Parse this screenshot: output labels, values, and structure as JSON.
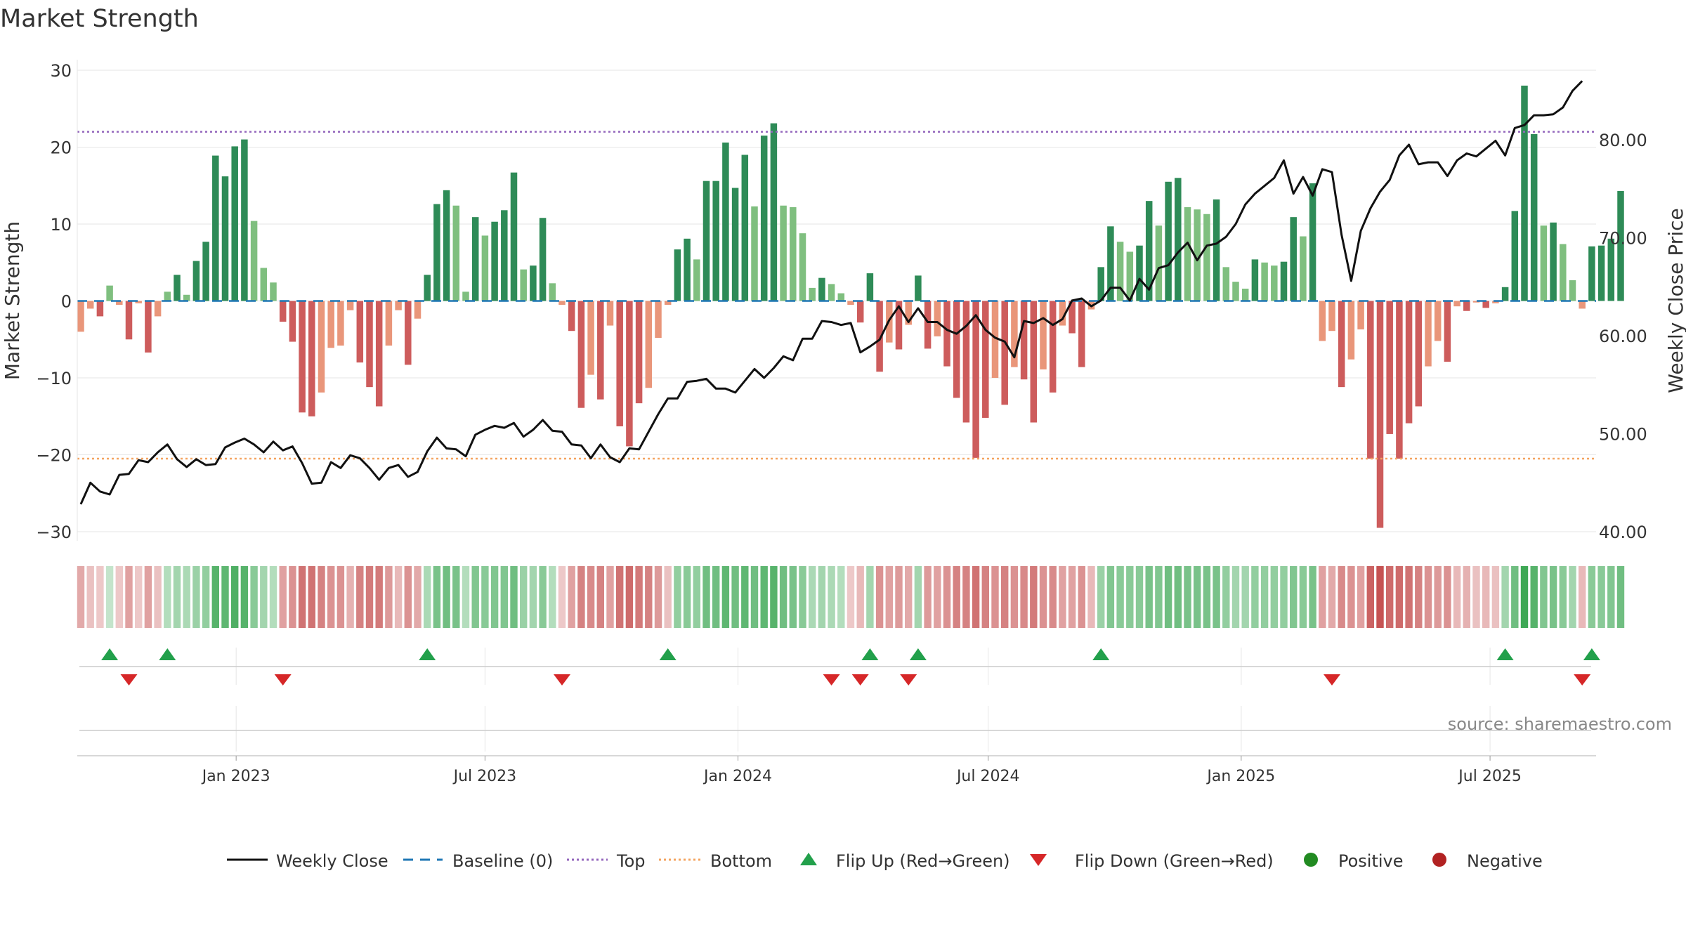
{
  "title": "Market Strength",
  "source_text": "source: sharemaestro.com",
  "chart_data": {
    "type": "bar",
    "title": "Market Strength",
    "ylabel": "Market Strength",
    "y2label": "Weekly Close Price",
    "ylim": [
      -30,
      30
    ],
    "y2lim": [
      40,
      85
    ],
    "yticks": [
      30,
      20,
      10,
      0,
      -10,
      -20,
      -30
    ],
    "yticklabels": [
      "30",
      "20",
      "10",
      "0",
      "−10",
      "−20",
      "−30"
    ],
    "y2ticks": [
      80,
      70,
      60,
      50,
      40
    ],
    "y2ticklabels": [
      "80.00",
      "70.00",
      "60.00",
      "50.00",
      "40.00"
    ],
    "x_start": "2022-09-10",
    "x_step_days": 7,
    "xticks": [
      {
        "date": "2023-01-01",
        "label": "Jan 2023"
      },
      {
        "date": "2023-07-01",
        "label": "Jul 2023"
      },
      {
        "date": "2024-01-01",
        "label": "Jan 2024"
      },
      {
        "date": "2024-07-01",
        "label": "Jul 2024"
      },
      {
        "date": "2025-01-01",
        "label": "Jan 2025"
      },
      {
        "date": "2025-07-01",
        "label": "Jul 2025"
      }
    ],
    "top_line": 22,
    "bottom_line": -20.5,
    "baseline": 0,
    "strength": [
      -4,
      -1,
      -2,
      2,
      -0.5,
      -5,
      -0.3,
      -6.7,
      -2,
      1.2,
      3.4,
      0.8,
      5.2,
      7.7,
      18.9,
      16.2,
      20.1,
      21,
      10.4,
      4.3,
      2.4,
      -2.7,
      -5.3,
      -14.5,
      -15,
      -11.9,
      -6.1,
      -5.8,
      -1.2,
      -8,
      -11.2,
      -13.7,
      -5.8,
      -1.2,
      -8.3,
      -2.3,
      3.4,
      12.6,
      14.4,
      12.4,
      1.2,
      10.9,
      8.5,
      10.3,
      11.8,
      16.7,
      4.1,
      4.6,
      10.8,
      2.3,
      -0.5,
      -3.9,
      -13.9,
      -9.6,
      -12.8,
      -3.2,
      -16.3,
      -18.9,
      -13.3,
      -11.3,
      -4.8,
      -0.5,
      6.7,
      8.1,
      5.4,
      15.6,
      15.6,
      20.6,
      14.7,
      19,
      12.3,
      21.5,
      23.1,
      12.4,
      12.2,
      8.8,
      1.7,
      3,
      2.2,
      1,
      -0.5,
      -2.8,
      3.6,
      -9.2,
      -5.4,
      -6.3,
      -3.1,
      3.3,
      -6.2,
      -4.6,
      -8.5,
      -12.6,
      -15.8,
      -20.4,
      -15.2,
      -10,
      -13.5,
      -8.6,
      -10.2,
      -15.8,
      -8.9,
      -11.9,
      -3.2,
      -4.2,
      -8.6,
      -1.1,
      4.4,
      9.7,
      7.7,
      6.4,
      7.2,
      13,
      9.8,
      15.5,
      16,
      12.2,
      11.9,
      11.3,
      13.2,
      4.4,
      2.5,
      1.6,
      5.4,
      5,
      4.6,
      5.1,
      10.9,
      8.4,
      15.3,
      -5.2,
      -3.9,
      -11.2,
      -7.6,
      -3.7,
      -20.5,
      -29.5,
      -17.3,
      -20.5,
      -15.9,
      -13.7,
      -8.5,
      -5.2,
      -7.9,
      -0.7,
      -1.3,
      -0.2,
      -0.9,
      -0.3,
      1.8,
      11.7,
      28,
      21.7,
      9.8,
      10.2,
      7.4,
      2.7,
      -1,
      7.1,
      7.2,
      8.1,
      14.3
    ],
    "weekly_close": [
      42.8,
      45,
      44.1,
      43.8,
      45.8,
      45.9,
      47.3,
      47.1,
      48.1,
      48.9,
      47.4,
      46.6,
      47.4,
      46.8,
      46.9,
      48.6,
      49.1,
      49.5,
      48.9,
      48.1,
      49.2,
      48.3,
      48.7,
      47,
      44.9,
      45,
      47.1,
      46.5,
      47.8,
      47.5,
      46.5,
      45.3,
      46.5,
      46.8,
      45.6,
      46.1,
      48.2,
      49.6,
      48.5,
      48.4,
      47.7,
      49.9,
      50.4,
      50.8,
      50.6,
      51.1,
      49.7,
      50.4,
      51.4,
      50.3,
      50.2,
      48.9,
      48.8,
      47.5,
      48.9,
      47.6,
      47.1,
      48.5,
      48.4,
      50.2,
      52,
      53.6,
      53.6,
      55.3,
      55.4,
      55.6,
      54.6,
      54.6,
      54.2,
      55.4,
      56.6,
      55.7,
      56.7,
      57.9,
      57.5,
      59.7,
      59.7,
      61.5,
      61.4,
      61.1,
      61.3,
      58.3,
      58.9,
      59.6,
      61.6,
      63,
      61.4,
      62.8,
      61.4,
      61.4,
      60.6,
      60.2,
      61,
      62.1,
      60.6,
      59.8,
      59.4,
      57.8,
      61.5,
      61.3,
      61.8,
      61.1,
      61.7,
      63.6,
      63.8,
      63,
      63.6,
      64.9,
      64.9,
      63.6,
      65.8,
      64.7,
      66.9,
      67.2,
      68.5,
      69.5,
      67.7,
      69.2,
      69.4,
      70.1,
      71.4,
      73.4,
      74.5,
      75.3,
      76.1,
      77.9,
      74.5,
      76.2,
      74.3,
      77,
      76.7,
      70.3,
      65.6,
      70.7,
      73,
      74.7,
      75.9,
      78.4,
      79.5,
      77.5,
      77.7,
      77.7,
      76.3,
      77.9,
      78.6,
      78.3,
      79.1,
      79.9,
      78.4,
      81.2,
      81.5,
      82.5,
      82.5,
      82.6,
      83.3,
      85,
      86
    ],
    "heat_strip": [
      -0.3,
      -0.15,
      -0.1,
      0.1,
      -0.1,
      -0.35,
      -0.1,
      -0.35,
      -0.15,
      0.2,
      0.3,
      0.25,
      0.35,
      0.4,
      0.75,
      0.7,
      0.8,
      0.75,
      0.45,
      0.3,
      0.2,
      -0.35,
      -0.45,
      -0.65,
      -0.65,
      -0.55,
      -0.45,
      -0.45,
      -0.25,
      -0.55,
      -0.6,
      -0.6,
      -0.4,
      -0.2,
      -0.45,
      -0.3,
      0.25,
      0.55,
      0.6,
      0.55,
      0.2,
      0.5,
      0.45,
      0.5,
      0.5,
      0.6,
      0.35,
      0.3,
      0.45,
      0.2,
      -0.1,
      -0.35,
      -0.55,
      -0.5,
      -0.55,
      -0.35,
      -0.65,
      -0.7,
      -0.6,
      -0.55,
      -0.4,
      -0.15,
      0.4,
      0.45,
      0.4,
      0.6,
      0.6,
      0.7,
      0.6,
      0.7,
      0.6,
      0.7,
      0.75,
      0.6,
      0.55,
      0.45,
      0.25,
      0.3,
      0.25,
      0.2,
      -0.1,
      -0.2,
      0.3,
      -0.45,
      -0.35,
      -0.4,
      -0.3,
      0.3,
      -0.4,
      -0.35,
      -0.45,
      -0.55,
      -0.55,
      -0.65,
      -0.55,
      -0.45,
      -0.55,
      -0.45,
      -0.5,
      -0.6,
      -0.45,
      -0.5,
      -0.35,
      -0.35,
      -0.45,
      -0.2,
      0.35,
      0.5,
      0.45,
      0.45,
      0.45,
      0.55,
      0.5,
      0.6,
      0.6,
      0.55,
      0.55,
      0.55,
      0.55,
      0.4,
      0.3,
      0.3,
      0.4,
      0.4,
      0.4,
      0.4,
      0.5,
      0.45,
      0.55,
      -0.35,
      -0.3,
      -0.5,
      -0.45,
      -0.35,
      -0.75,
      -0.85,
      -0.7,
      -0.7,
      -0.65,
      -0.55,
      -0.45,
      -0.4,
      -0.45,
      -0.2,
      -0.25,
      -0.15,
      -0.2,
      -0.15,
      0.3,
      0.6,
      0.9,
      0.75,
      0.5,
      0.55,
      0.45,
      0.3,
      -0.2,
      0.45,
      0.45,
      0.5,
      0.6
    ],
    "flip_up_weeks": [
      3,
      9,
      36,
      61,
      82,
      87,
      106,
      148,
      157
    ],
    "flip_down_weeks": [
      5,
      21,
      50,
      78,
      81,
      86,
      130,
      156
    ]
  },
  "legend": {
    "weekly_close": "Weekly Close",
    "baseline": "Baseline (0)",
    "top": "Top",
    "bottom": "Bottom",
    "flip_up": "Flip Up (Red→Green)",
    "flip_down": "Flip Down (Green→Red)",
    "positive": "Positive",
    "negative": "Negative"
  },
  "colors": {
    "positive_strong": "#2e8b57",
    "positive_light": "#7fbf7f",
    "negative_strong": "#cd5c5c",
    "negative_light": "#e9967a",
    "top_line": "#9467bd",
    "bottom_line": "#f4a460",
    "baseline": "#1f77b4",
    "close_line": "#111111",
    "flip_up": "#22a04b",
    "flip_down": "#d62728",
    "positive_dot": "#228b22",
    "negative_dot": "#b22222",
    "grid": "#e6e6e6",
    "axis_text": "#333333",
    "source_text": "#888888"
  }
}
